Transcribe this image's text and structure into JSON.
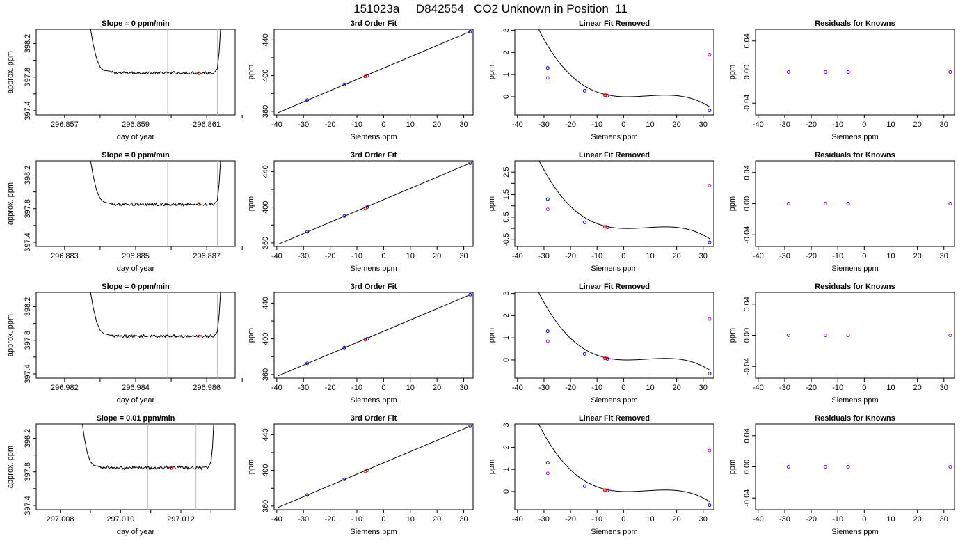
{
  "figure": {
    "title": "151023a     D842554   CO2 Unknown in Position  11"
  },
  "colors": {
    "line": "#000000",
    "frame": "#000000",
    "window_lines": "#bebebe",
    "known_points": "#0000ff",
    "unknown_points": "#ff0000",
    "linear_removed_points": "#cc00ff",
    "residual_points": "#7f00ff"
  },
  "chart_data": [
    {
      "type": "line",
      "row": 0,
      "col": 0,
      "title": "Slope =  0  ppm/min",
      "xlabel": "day of year",
      "ylabel": "approx. ppm",
      "xlim": [
        296.8562,
        296.8618
      ],
      "ylim": [
        397.35,
        398.37
      ],
      "xticks": [
        296.857,
        296.858,
        296.859,
        296.86,
        296.861,
        296.862
      ],
      "xticklabels": [
        "296.857",
        "",
        "296.859",
        "",
        "296.861",
        ""
      ],
      "yticks": [
        397.4,
        397.6,
        397.8,
        398.0,
        398.2
      ],
      "yticklabels": [
        "397.4",
        "",
        "397.8",
        "",
        "398.2"
      ],
      "window": [
        296.8599,
        296.8613
      ],
      "trace": {
        "start": 296.8577,
        "end": 296.8614,
        "plateau": 397.85,
        "noise": 0.008,
        "points": [
          [
            296.8577,
            398.45
          ],
          [
            296.8578,
            398.2
          ],
          [
            296.8579,
            398.02
          ],
          [
            296.858,
            397.92
          ],
          [
            296.8581,
            397.88
          ],
          [
            296.8583,
            397.87
          ],
          [
            296.8612,
            397.85
          ],
          [
            296.8613,
            397.9
          ],
          [
            296.86135,
            398.1
          ],
          [
            296.8614,
            398.45
          ]
        ]
      },
      "marker": {
        "x": 296.86078,
        "y": 397.845
      }
    },
    {
      "type": "scatter",
      "row": 0,
      "col": 1,
      "title": "3rd Order Fit",
      "xlabel": "Siemens ppm",
      "ylabel": "ppm",
      "xlim": [
        -41,
        33.5
      ],
      "ylim": [
        356,
        452
      ],
      "xticks": [
        -40,
        -30,
        -20,
        -10,
        0,
        10,
        20,
        30
      ],
      "yticks": [
        360,
        380,
        400,
        420,
        440
      ],
      "yticklabels": [
        "360",
        "",
        "400",
        "",
        "440"
      ],
      "fit_line": {
        "x1": -39.5,
        "y1": 358.5,
        "x2": 32.6,
        "y2": 449.7
      },
      "known": [
        [
          -28.6,
          372.5
        ],
        [
          -14.7,
          390.1
        ],
        [
          -6.1,
          400.2
        ],
        [
          32.4,
          449.4
        ]
      ],
      "unknown": [
        [
          -6.9,
          399.0
        ]
      ]
    },
    {
      "type": "scatter",
      "row": 0,
      "col": 2,
      "title": "Linear Fit Removed",
      "xlabel": "Siemens ppm",
      "ylabel": "ppm",
      "xlim": [
        -41,
        34
      ],
      "ylim": [
        -0.82,
        3.05
      ],
      "xticks": [
        -40,
        -30,
        -20,
        -10,
        0,
        10,
        20,
        30
      ],
      "yticks": [
        0,
        1,
        2,
        3
      ],
      "curve": {
        "c0": 0.0,
        "c1": -0.0035,
        "c2": 0.00128,
        "c3": -4.96e-05
      },
      "known": [
        [
          -28.6,
          1.3
        ],
        [
          -14.7,
          0.27
        ],
        [
          -6.1,
          0.05
        ],
        [
          32.4,
          -0.62
        ]
      ],
      "unknown": [
        [
          -7.1,
          0.07
        ],
        [
          -6.7,
          0.07
        ]
      ],
      "linear_removed": [
        [
          -28.6,
          0.85
        ],
        [
          32.4,
          1.9
        ]
      ]
    },
    {
      "type": "scatter",
      "row": 0,
      "col": 3,
      "title": "Residuals for Knowns",
      "xlabel": "Siemens ppm",
      "ylabel": "ppm",
      "xlim": [
        -41,
        34
      ],
      "ylim": [
        -0.055,
        0.055
      ],
      "xticks": [
        -40,
        -30,
        -20,
        -10,
        0,
        10,
        20,
        30
      ],
      "yticks": [
        -0.04,
        0.0,
        0.04
      ],
      "yticklabels": [
        "-0.04",
        "0.00",
        "0.04"
      ],
      "residuals": [
        [
          -28.6,
          0.0
        ],
        [
          -14.7,
          0.0
        ],
        [
          -6.1,
          0.0
        ],
        [
          32.4,
          0.0
        ]
      ]
    },
    {
      "type": "line",
      "row": 1,
      "col": 0,
      "title": "Slope =  0  ppm/min",
      "xlabel": "day of year",
      "ylabel": "approx. ppm",
      "xlim": [
        296.8822,
        296.8878
      ],
      "ylim": [
        397.35,
        398.37
      ],
      "xticks": [
        296.883,
        296.884,
        296.885,
        296.886,
        296.887,
        296.888
      ],
      "xticklabels": [
        "296.883",
        "",
        "296.885",
        "",
        "296.887",
        ""
      ],
      "yticks": [
        397.4,
        397.6,
        397.8,
        398.0,
        398.2
      ],
      "yticklabels": [
        "397.4",
        "",
        "397.8",
        "",
        "398.2"
      ],
      "window": [
        296.8859,
        296.8873
      ],
      "trace": {
        "start": 296.8837,
        "end": 296.8874,
        "plateau": 397.85,
        "noise": 0.008,
        "points": [
          [
            296.8837,
            398.45
          ],
          [
            296.8838,
            398.2
          ],
          [
            296.8839,
            398.02
          ],
          [
            296.884,
            397.92
          ],
          [
            296.8841,
            397.88
          ],
          [
            296.8843,
            397.86
          ],
          [
            296.8872,
            397.85
          ],
          [
            296.8873,
            397.9
          ],
          [
            296.88735,
            398.1
          ],
          [
            296.8874,
            398.45
          ]
        ]
      },
      "marker": {
        "x": 296.88678,
        "y": 397.855
      }
    },
    {
      "type": "scatter",
      "row": 1,
      "col": 1,
      "title": "3rd Order Fit",
      "xlabel": "Siemens ppm",
      "ylabel": "ppm",
      "xlim": [
        -41,
        33.5
      ],
      "ylim": [
        356,
        452
      ],
      "xticks": [
        -40,
        -30,
        -20,
        -10,
        0,
        10,
        20,
        30
      ],
      "yticks": [
        360,
        380,
        400,
        420,
        440
      ],
      "yticklabels": [
        "360",
        "",
        "400",
        "",
        "440"
      ],
      "fit_line": {
        "x1": -39.5,
        "y1": 358.5,
        "x2": 32.6,
        "y2": 449.7
      },
      "known": [
        [
          -28.6,
          372.5
        ],
        [
          -14.7,
          390.1
        ],
        [
          -6.1,
          400.2
        ],
        [
          32.4,
          449.4
        ]
      ],
      "unknown": [
        [
          -6.9,
          399.0
        ]
      ]
    },
    {
      "type": "scatter",
      "row": 1,
      "col": 2,
      "title": "Linear Fit Removed",
      "xlabel": "Siemens ppm",
      "ylabel": "ppm",
      "xlim": [
        -41,
        34
      ],
      "ylim": [
        -0.8,
        3.0
      ],
      "xticks": [
        -40,
        -30,
        -20,
        -10,
        0,
        10,
        20,
        30
      ],
      "yticks": [
        -0.5,
        0.0,
        0.5,
        1.0,
        1.5,
        2.0,
        2.5
      ],
      "yticklabels": [
        "-0.5",
        "",
        "0.5",
        "",
        "1.5",
        "",
        "2.5"
      ],
      "curve": {
        "c0": 0.0,
        "c1": -0.0035,
        "c2": 0.00128,
        "c3": -4.96e-05
      },
      "known": [
        [
          -28.6,
          1.3
        ],
        [
          -14.7,
          0.27
        ],
        [
          -6.1,
          0.05
        ],
        [
          32.4,
          -0.62
        ]
      ],
      "unknown": [
        [
          -7.1,
          0.07
        ],
        [
          -6.7,
          0.07
        ]
      ],
      "linear_removed": [
        [
          -28.6,
          0.85
        ],
        [
          32.4,
          1.9
        ]
      ]
    },
    {
      "type": "scatter",
      "row": 1,
      "col": 3,
      "title": "Residuals for Knowns",
      "xlabel": "Siemens ppm",
      "ylabel": "ppm",
      "xlim": [
        -41,
        34
      ],
      "ylim": [
        -0.055,
        0.055
      ],
      "xticks": [
        -40,
        -30,
        -20,
        -10,
        0,
        10,
        20,
        30
      ],
      "yticks": [
        -0.04,
        0.0,
        0.04
      ],
      "yticklabels": [
        "-0.04",
        "0.00",
        "0.04"
      ],
      "residuals": [
        [
          -28.6,
          0.0
        ],
        [
          -14.7,
          0.0
        ],
        [
          -6.1,
          0.0
        ],
        [
          32.4,
          0.0
        ]
      ]
    },
    {
      "type": "line",
      "row": 2,
      "col": 0,
      "title": "Slope =  0  ppm/min",
      "xlabel": "day of year",
      "ylabel": "approx. ppm",
      "xlim": [
        296.9812,
        296.9868
      ],
      "ylim": [
        397.35,
        398.37
      ],
      "xticks": [
        296.982,
        296.983,
        296.984,
        296.985,
        296.986,
        296.987
      ],
      "xticklabels": [
        "296.982",
        "",
        "296.984",
        "",
        "296.986",
        ""
      ],
      "yticks": [
        397.4,
        397.6,
        397.8,
        398.0,
        398.2
      ],
      "yticklabels": [
        "397.4",
        "",
        "397.8",
        "",
        "398.2"
      ],
      "window": [
        296.9849,
        296.9863
      ],
      "trace": {
        "start": 296.9827,
        "end": 296.9864,
        "plateau": 397.85,
        "noise": 0.008,
        "points": [
          [
            296.9827,
            398.45
          ],
          [
            296.9828,
            398.2
          ],
          [
            296.9829,
            398.02
          ],
          [
            296.983,
            397.92
          ],
          [
            296.9831,
            397.88
          ],
          [
            296.9833,
            397.86
          ],
          [
            296.9862,
            397.85
          ],
          [
            296.9863,
            397.9
          ],
          [
            296.98635,
            398.1
          ],
          [
            296.9864,
            398.45
          ]
        ]
      },
      "marker": {
        "x": 296.98578,
        "y": 397.845
      }
    },
    {
      "type": "scatter",
      "row": 2,
      "col": 1,
      "title": "3rd Order Fit",
      "xlabel": "Siemens ppm",
      "ylabel": "ppm",
      "xlim": [
        -41,
        33.5
      ],
      "ylim": [
        356,
        452
      ],
      "xticks": [
        -40,
        -30,
        -20,
        -10,
        0,
        10,
        20,
        30
      ],
      "yticks": [
        360,
        380,
        400,
        420,
        440
      ],
      "yticklabels": [
        "360",
        "",
        "400",
        "",
        "440"
      ],
      "fit_line": {
        "x1": -39.5,
        "y1": 358.5,
        "x2": 32.6,
        "y2": 449.7
      },
      "known": [
        [
          -28.6,
          372.5
        ],
        [
          -14.7,
          390.1
        ],
        [
          -6.1,
          400.2
        ],
        [
          32.4,
          449.4
        ]
      ],
      "unknown": [
        [
          -6.9,
          399.0
        ]
      ]
    },
    {
      "type": "scatter",
      "row": 2,
      "col": 2,
      "title": "Linear Fit Removed",
      "xlabel": "Siemens ppm",
      "ylabel": "ppm",
      "xlim": [
        -41,
        34
      ],
      "ylim": [
        -0.82,
        3.05
      ],
      "xticks": [
        -40,
        -30,
        -20,
        -10,
        0,
        10,
        20,
        30
      ],
      "yticks": [
        0,
        1,
        2,
        3
      ],
      "curve": {
        "c0": 0.0,
        "c1": -0.0035,
        "c2": 0.00128,
        "c3": -4.96e-05
      },
      "known": [
        [
          -28.6,
          1.3
        ],
        [
          -14.7,
          0.27
        ],
        [
          -6.1,
          0.05
        ],
        [
          32.4,
          -0.62
        ]
      ],
      "unknown": [
        [
          -7.1,
          0.07
        ],
        [
          -6.7,
          0.07
        ]
      ],
      "linear_removed": [
        [
          -28.6,
          0.85
        ],
        [
          32.4,
          1.85
        ]
      ]
    },
    {
      "type": "scatter",
      "row": 2,
      "col": 3,
      "title": "Residuals for Knowns",
      "xlabel": "Siemens ppm",
      "ylabel": "ppm",
      "xlim": [
        -41,
        34
      ],
      "ylim": [
        -0.055,
        0.055
      ],
      "xticks": [
        -40,
        -30,
        -20,
        -10,
        0,
        10,
        20,
        30
      ],
      "yticks": [
        -0.04,
        0.0,
        0.04
      ],
      "yticklabels": [
        "-0.04",
        "0.00",
        "0.04"
      ],
      "residuals": [
        [
          -28.6,
          0.0
        ],
        [
          -14.7,
          0.0
        ],
        [
          -6.1,
          0.0
        ],
        [
          32.4,
          0.0
        ]
      ]
    },
    {
      "type": "line",
      "row": 3,
      "col": 0,
      "title": "Slope =  0.01  ppm/min",
      "xlabel": "day of year",
      "ylabel": "approx. ppm",
      "xlim": [
        297.0072,
        297.0138
      ],
      "ylim": [
        397.35,
        398.37
      ],
      "xticks": [
        297.008,
        297.009,
        297.01,
        297.011,
        297.012,
        297.013
      ],
      "xticklabels": [
        "297.008",
        "",
        "297.010",
        "",
        "297.012",
        ""
      ],
      "yticks": [
        397.4,
        397.6,
        397.8,
        398.0,
        398.2
      ],
      "yticklabels": [
        "397.4",
        "",
        "397.8",
        "",
        "398.2"
      ],
      "window": [
        297.0109,
        297.0125
      ],
      "trace": {
        "start": 297.0087,
        "end": 297.0131,
        "plateau": 397.85,
        "noise": 0.009,
        "points": [
          [
            297.0087,
            398.45
          ],
          [
            297.0088,
            398.2
          ],
          [
            297.0089,
            398.02
          ],
          [
            297.009,
            397.92
          ],
          [
            297.0091,
            397.88
          ],
          [
            297.0093,
            397.86
          ],
          [
            297.0129,
            397.85
          ],
          [
            297.013,
            397.92
          ],
          [
            297.01305,
            398.1
          ],
          [
            297.0131,
            398.45
          ]
        ]
      },
      "marker": {
        "x": 297.01168,
        "y": 397.845
      }
    },
    {
      "type": "scatter",
      "row": 3,
      "col": 1,
      "title": "3rd Order Fit",
      "xlabel": "Siemens ppm",
      "ylabel": "ppm",
      "xlim": [
        -41,
        33.5
      ],
      "ylim": [
        356,
        452
      ],
      "xticks": [
        -40,
        -30,
        -20,
        -10,
        0,
        10,
        20,
        30
      ],
      "yticks": [
        360,
        380,
        400,
        420,
        440
      ],
      "yticklabels": [
        "360",
        "",
        "400",
        "",
        "440"
      ],
      "fit_line": {
        "x1": -39.5,
        "y1": 358.5,
        "x2": 32.6,
        "y2": 449.7
      },
      "known": [
        [
          -28.6,
          372.5
        ],
        [
          -14.7,
          390.1
        ],
        [
          -6.1,
          400.2
        ],
        [
          32.4,
          449.4
        ]
      ],
      "unknown": [
        [
          -6.9,
          399.0
        ]
      ]
    },
    {
      "type": "scatter",
      "row": 3,
      "col": 2,
      "title": "Linear Fit Removed",
      "xlabel": "Siemens ppm",
      "ylabel": "ppm",
      "xlim": [
        -41,
        34
      ],
      "ylim": [
        -0.82,
        3.05
      ],
      "xticks": [
        -40,
        -30,
        -20,
        -10,
        0,
        10,
        20,
        30
      ],
      "yticks": [
        0,
        1,
        2,
        3
      ],
      "curve": {
        "c0": 0.0,
        "c1": -0.0035,
        "c2": 0.00128,
        "c3": -4.96e-05
      },
      "known": [
        [
          -28.6,
          1.3
        ],
        [
          -14.7,
          0.24
        ],
        [
          -6.1,
          0.05
        ],
        [
          32.4,
          -0.62
        ]
      ],
      "unknown": [
        [
          -7.1,
          0.06
        ],
        [
          -6.7,
          0.06
        ]
      ],
      "linear_removed": [
        [
          -28.6,
          0.82
        ],
        [
          32.4,
          1.85
        ]
      ]
    },
    {
      "type": "scatter",
      "row": 3,
      "col": 3,
      "title": "Residuals for Knowns",
      "xlabel": "Siemens ppm",
      "ylabel": "ppm",
      "xlim": [
        -41,
        34
      ],
      "ylim": [
        -0.055,
        0.055
      ],
      "xticks": [
        -40,
        -30,
        -20,
        -10,
        0,
        10,
        20,
        30
      ],
      "yticks": [
        -0.04,
        0.0,
        0.04
      ],
      "yticklabels": [
        "-0.04",
        "0.00",
        "0.04"
      ],
      "residuals": [
        [
          -28.6,
          0.0
        ],
        [
          -14.7,
          0.0
        ],
        [
          -6.1,
          0.0
        ],
        [
          32.4,
          0.0
        ]
      ]
    }
  ]
}
